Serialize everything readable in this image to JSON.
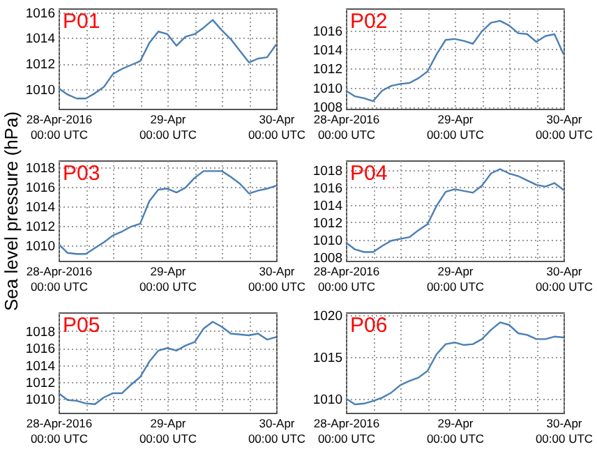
{
  "chart_data": [
    {
      "type": "line",
      "title": "P01",
      "grid": true,
      "line_style": "solid",
      "x": [
        "2016-04-28T00:00",
        "2016-04-28T02:00",
        "2016-04-28T04:00",
        "2016-04-28T06:00",
        "2016-04-28T08:00",
        "2016-04-28T10:00",
        "2016-04-28T12:00",
        "2016-04-28T14:00",
        "2016-04-28T16:00",
        "2016-04-28T18:00",
        "2016-04-28T20:00",
        "2016-04-28T22:00",
        "2016-04-29T00:00",
        "2016-04-29T02:00",
        "2016-04-29T04:00",
        "2016-04-29T06:00",
        "2016-04-29T08:00",
        "2016-04-29T10:00",
        "2016-04-29T12:00",
        "2016-04-29T14:00",
        "2016-04-29T16:00",
        "2016-04-29T18:00",
        "2016-04-29T20:00",
        "2016-04-29T22:00",
        "2016-04-30T00:00"
      ],
      "series": [
        {
          "color": "#4a7fb5",
          "values": [
            1010.1,
            1009.6,
            1009.3,
            1009.3,
            1009.7,
            1010.2,
            1011.2,
            1011.6,
            1011.9,
            1012.2,
            1013.6,
            1014.5,
            1014.3,
            1013.4,
            1014.1,
            1014.3,
            1014.8,
            1015.4,
            1014.6,
            1013.9,
            1013.0,
            1012.1,
            1012.4,
            1012.5,
            1013.5
          ]
        }
      ],
      "xlim": [
        "2016-04-28T00:00",
        "2016-04-30T00:00"
      ],
      "xticks": [
        {
          "value": "2016-04-28T00:00",
          "label": "28-Apr-2016\n00:00 UTC"
        },
        {
          "value": "2016-04-28T06:00",
          "label": null
        },
        {
          "value": "2016-04-28T12:00",
          "label": null
        },
        {
          "value": "2016-04-28T18:00",
          "label": null
        },
        {
          "value": "2016-04-29T00:00",
          "label": "29-Apr\n00:00 UTC"
        },
        {
          "value": "2016-04-29T06:00",
          "label": null
        },
        {
          "value": "2016-04-29T12:00",
          "label": null
        },
        {
          "value": "2016-04-29T18:00",
          "label": null
        },
        {
          "value": "2016-04-30T00:00",
          "label": "30-Apr\n00:00 UTC"
        }
      ],
      "ylim": [
        1008.5,
        1016.3
      ],
      "yticks": [
        1010,
        1012,
        1014,
        1016
      ]
    },
    {
      "type": "line",
      "title": "P02",
      "grid": true,
      "line_style": "solid",
      "x": [
        "2016-04-28T00:00",
        "2016-04-28T02:00",
        "2016-04-28T04:00",
        "2016-04-28T06:00",
        "2016-04-28T08:00",
        "2016-04-28T10:00",
        "2016-04-28T12:00",
        "2016-04-28T14:00",
        "2016-04-28T16:00",
        "2016-04-28T18:00",
        "2016-04-28T20:00",
        "2016-04-28T22:00",
        "2016-04-29T00:00",
        "2016-04-29T02:00",
        "2016-04-29T04:00",
        "2016-04-29T06:00",
        "2016-04-29T08:00",
        "2016-04-29T10:00",
        "2016-04-29T12:00",
        "2016-04-29T14:00",
        "2016-04-29T16:00",
        "2016-04-29T18:00",
        "2016-04-29T20:00",
        "2016-04-29T22:00",
        "2016-04-30T00:00"
      ],
      "series": [
        {
          "color": "#4a7fb5",
          "values": [
            1009.7,
            1009.1,
            1008.9,
            1008.6,
            1009.7,
            1010.2,
            1010.4,
            1010.5,
            1011.0,
            1011.7,
            1013.5,
            1015.0,
            1015.1,
            1014.9,
            1014.6,
            1015.9,
            1016.8,
            1017.0,
            1016.5,
            1015.7,
            1015.6,
            1014.8,
            1015.4,
            1015.6,
            1013.5
          ]
        }
      ],
      "xlim": [
        "2016-04-28T00:00",
        "2016-04-30T00:00"
      ],
      "xticks": [
        {
          "value": "2016-04-28T00:00",
          "label": "28-Apr-2016\n00:00 UTC"
        },
        {
          "value": "2016-04-28T06:00",
          "label": null
        },
        {
          "value": "2016-04-28T12:00",
          "label": null
        },
        {
          "value": "2016-04-28T18:00",
          "label": null
        },
        {
          "value": "2016-04-29T00:00",
          "label": "29-Apr\n00:00 UTC"
        },
        {
          "value": "2016-04-29T06:00",
          "label": null
        },
        {
          "value": "2016-04-29T12:00",
          "label": null
        },
        {
          "value": "2016-04-29T18:00",
          "label": null
        },
        {
          "value": "2016-04-30T00:00",
          "label": "30-Apr\n00:00 UTC"
        }
      ],
      "ylim": [
        1007.8,
        1018.3
      ],
      "yticks": [
        1008,
        1010,
        1012,
        1014,
        1016
      ]
    },
    {
      "type": "line",
      "title": "P03",
      "ylabel": "Sea level pressure (hPa)",
      "grid": true,
      "line_style": "solid",
      "x": [
        "2016-04-28T00:00",
        "2016-04-28T02:00",
        "2016-04-28T04:00",
        "2016-04-28T06:00",
        "2016-04-28T08:00",
        "2016-04-28T10:00",
        "2016-04-28T12:00",
        "2016-04-28T14:00",
        "2016-04-28T16:00",
        "2016-04-28T18:00",
        "2016-04-28T20:00",
        "2016-04-28T22:00",
        "2016-04-29T00:00",
        "2016-04-29T02:00",
        "2016-04-29T04:00",
        "2016-04-29T06:00",
        "2016-04-29T08:00",
        "2016-04-29T10:00",
        "2016-04-29T12:00",
        "2016-04-29T14:00",
        "2016-04-29T16:00",
        "2016-04-29T18:00",
        "2016-04-29T20:00",
        "2016-04-29T22:00",
        "2016-04-30T00:00"
      ],
      "series": [
        {
          "color": "#4a7fb5",
          "values": [
            1010.1,
            1009.2,
            1009.1,
            1009.1,
            1009.7,
            1010.3,
            1011.0,
            1011.4,
            1011.9,
            1012.2,
            1014.5,
            1015.7,
            1015.8,
            1015.4,
            1015.9,
            1016.9,
            1017.6,
            1017.6,
            1017.6,
            1017.0,
            1016.3,
            1015.3,
            1015.6,
            1015.8,
            1016.1
          ]
        }
      ],
      "xlim": [
        "2016-04-28T00:00",
        "2016-04-30T00:00"
      ],
      "xticks": [
        {
          "value": "2016-04-28T00:00",
          "label": "28-Apr-2016\n00:00 UTC"
        },
        {
          "value": "2016-04-28T06:00",
          "label": null
        },
        {
          "value": "2016-04-28T12:00",
          "label": null
        },
        {
          "value": "2016-04-28T18:00",
          "label": null
        },
        {
          "value": "2016-04-29T00:00",
          "label": "29-Apr\n00:00 UTC"
        },
        {
          "value": "2016-04-29T06:00",
          "label": null
        },
        {
          "value": "2016-04-29T12:00",
          "label": null
        },
        {
          "value": "2016-04-29T18:00",
          "label": null
        },
        {
          "value": "2016-04-30T00:00",
          "label": "30-Apr\n00:00 UTC"
        }
      ],
      "ylim": [
        1008.4,
        1018.7
      ],
      "yticks": [
        1010,
        1012,
        1014,
        1016,
        1018
      ]
    },
    {
      "type": "line",
      "title": "P04",
      "grid": true,
      "line_style": "solid",
      "x": [
        "2016-04-28T00:00",
        "2016-04-28T02:00",
        "2016-04-28T04:00",
        "2016-04-28T06:00",
        "2016-04-28T08:00",
        "2016-04-28T10:00",
        "2016-04-28T12:00",
        "2016-04-28T14:00",
        "2016-04-28T16:00",
        "2016-04-28T18:00",
        "2016-04-28T20:00",
        "2016-04-28T22:00",
        "2016-04-29T00:00",
        "2016-04-29T02:00",
        "2016-04-29T04:00",
        "2016-04-29T06:00",
        "2016-04-29T08:00",
        "2016-04-29T10:00",
        "2016-04-29T12:00",
        "2016-04-29T14:00",
        "2016-04-29T16:00",
        "2016-04-29T18:00",
        "2016-04-29T20:00",
        "2016-04-29T22:00",
        "2016-04-30T00:00"
      ],
      "series": [
        {
          "color": "#4a7fb5",
          "values": [
            1009.7,
            1008.9,
            1008.6,
            1008.6,
            1009.3,
            1009.9,
            1010.1,
            1010.3,
            1011.1,
            1011.8,
            1013.9,
            1015.5,
            1015.8,
            1015.6,
            1015.4,
            1016.2,
            1017.6,
            1018.1,
            1017.6,
            1017.3,
            1016.8,
            1016.3,
            1016.1,
            1016.5,
            1015.7
          ]
        }
      ],
      "xlim": [
        "2016-04-28T00:00",
        "2016-04-30T00:00"
      ],
      "xticks": [
        {
          "value": "2016-04-28T00:00",
          "label": "28-Apr-2016\n00:00 UTC"
        },
        {
          "value": "2016-04-28T06:00",
          "label": null
        },
        {
          "value": "2016-04-28T12:00",
          "label": null
        },
        {
          "value": "2016-04-28T18:00",
          "label": null
        },
        {
          "value": "2016-04-29T00:00",
          "label": "29-Apr\n00:00 UTC"
        },
        {
          "value": "2016-04-29T06:00",
          "label": null
        },
        {
          "value": "2016-04-29T12:00",
          "label": null
        },
        {
          "value": "2016-04-29T18:00",
          "label": null
        },
        {
          "value": "2016-04-30T00:00",
          "label": "30-Apr\n00:00 UTC"
        }
      ],
      "ylim": [
        1007.6,
        1019.1
      ],
      "yticks": [
        1008,
        1010,
        1012,
        1014,
        1016,
        1018
      ]
    },
    {
      "type": "line",
      "title": "P05",
      "grid": true,
      "line_style": "solid",
      "x": [
        "2016-04-28T00:00",
        "2016-04-28T02:00",
        "2016-04-28T04:00",
        "2016-04-28T06:00",
        "2016-04-28T08:00",
        "2016-04-28T10:00",
        "2016-04-28T12:00",
        "2016-04-28T14:00",
        "2016-04-28T16:00",
        "2016-04-28T18:00",
        "2016-04-28T20:00",
        "2016-04-28T22:00",
        "2016-04-29T00:00",
        "2016-04-29T02:00",
        "2016-04-29T04:00",
        "2016-04-29T06:00",
        "2016-04-29T08:00",
        "2016-04-29T10:00",
        "2016-04-29T12:00",
        "2016-04-29T14:00",
        "2016-04-29T16:00",
        "2016-04-29T18:00",
        "2016-04-29T20:00",
        "2016-04-29T22:00",
        "2016-04-30T00:00"
      ],
      "series": [
        {
          "color": "#4a7fb5",
          "values": [
            1010.7,
            1009.9,
            1009.8,
            1009.5,
            1009.4,
            1010.2,
            1010.7,
            1010.7,
            1011.7,
            1012.6,
            1014.4,
            1015.7,
            1016.0,
            1015.7,
            1016.3,
            1016.7,
            1018.3,
            1019.1,
            1018.5,
            1017.7,
            1017.6,
            1017.5,
            1017.7,
            1017.0,
            1017.3
          ]
        }
      ],
      "xlim": [
        "2016-04-28T00:00",
        "2016-04-30T00:00"
      ],
      "xticks": [
        {
          "value": "2016-04-28T00:00",
          "label": "28-Apr-2016\n00:00 UTC"
        },
        {
          "value": "2016-04-28T06:00",
          "label": null
        },
        {
          "value": "2016-04-28T12:00",
          "label": null
        },
        {
          "value": "2016-04-28T18:00",
          "label": null
        },
        {
          "value": "2016-04-29T00:00",
          "label": "29-Apr\n00:00 UTC"
        },
        {
          "value": "2016-04-29T06:00",
          "label": null
        },
        {
          "value": "2016-04-29T12:00",
          "label": null
        },
        {
          "value": "2016-04-29T18:00",
          "label": null
        },
        {
          "value": "2016-04-30T00:00",
          "label": "30-Apr\n00:00 UTC"
        }
      ],
      "ylim": [
        1008.4,
        1020.2
      ],
      "yticks": [
        1010,
        1012,
        1014,
        1016,
        1018
      ]
    },
    {
      "type": "line",
      "title": "P06",
      "grid": true,
      "line_style": "solid",
      "x": [
        "2016-04-28T00:00",
        "2016-04-28T02:00",
        "2016-04-28T04:00",
        "2016-04-28T06:00",
        "2016-04-28T08:00",
        "2016-04-28T10:00",
        "2016-04-28T12:00",
        "2016-04-28T14:00",
        "2016-04-28T16:00",
        "2016-04-28T18:00",
        "2016-04-28T20:00",
        "2016-04-28T22:00",
        "2016-04-29T00:00",
        "2016-04-29T02:00",
        "2016-04-29T04:00",
        "2016-04-29T06:00",
        "2016-04-29T08:00",
        "2016-04-29T10:00",
        "2016-04-29T12:00",
        "2016-04-29T14:00",
        "2016-04-29T16:00",
        "2016-04-29T18:00",
        "2016-04-29T20:00",
        "2016-04-29T22:00",
        "2016-04-30T00:00"
      ],
      "series": [
        {
          "color": "#4a7fb5",
          "values": [
            1010.0,
            1009.3,
            1009.4,
            1009.7,
            1010.1,
            1010.7,
            1011.6,
            1012.1,
            1012.5,
            1013.3,
            1015.3,
            1016.5,
            1016.7,
            1016.4,
            1016.5,
            1017.1,
            1018.2,
            1019.1,
            1018.8,
            1017.8,
            1017.6,
            1017.1,
            1017.1,
            1017.4,
            1017.3
          ]
        }
      ],
      "xlim": [
        "2016-04-28T00:00",
        "2016-04-30T00:00"
      ],
      "xticks": [
        {
          "value": "2016-04-28T00:00",
          "label": "28-Apr-2016\n00:00 UTC"
        },
        {
          "value": "2016-04-28T06:00",
          "label": null
        },
        {
          "value": "2016-04-28T12:00",
          "label": null
        },
        {
          "value": "2016-04-28T18:00",
          "label": null
        },
        {
          "value": "2016-04-29T00:00",
          "label": "29-Apr\n00:00 UTC"
        },
        {
          "value": "2016-04-29T06:00",
          "label": null
        },
        {
          "value": "2016-04-29T12:00",
          "label": null
        },
        {
          "value": "2016-04-29T18:00",
          "label": null
        },
        {
          "value": "2016-04-30T00:00",
          "label": "30-Apr\n00:00 UTC"
        }
      ],
      "ylim": [
        1008.3,
        1020.3
      ],
      "yticks": [
        1010,
        1015,
        1020
      ]
    }
  ]
}
